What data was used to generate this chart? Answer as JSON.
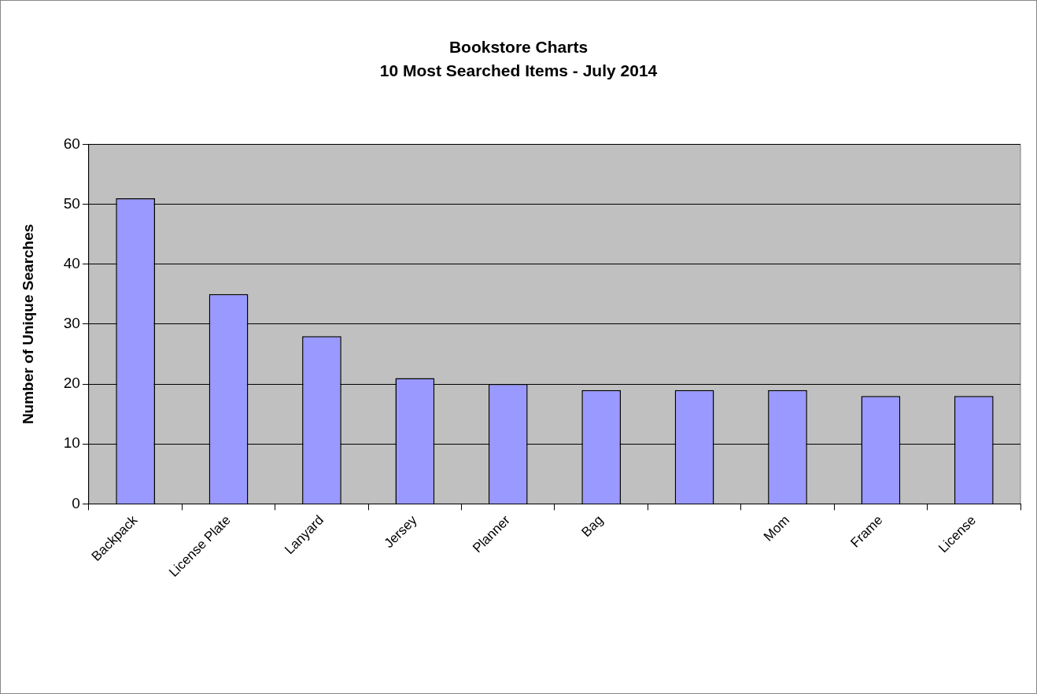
{
  "chart_data": {
    "type": "bar",
    "title": "Bookstore Charts",
    "subtitle": "10 Most Searched Items - July 2014",
    "ylabel": "Number of Unique Searches",
    "categories": [
      "Backpack",
      "License Plate",
      "Lanyard",
      "Jersey",
      "Planner",
      "Bag",
      null,
      "Mom",
      "Frame",
      "License"
    ],
    "values": [
      51,
      35,
      28,
      21,
      20,
      19,
      19,
      19,
      18,
      18
    ],
    "color": "#9999ff",
    "ylim": [
      0,
      60
    ],
    "yticks": [
      0,
      10,
      20,
      30,
      40,
      50,
      60
    ],
    "grid": "y",
    "legend": false
  }
}
